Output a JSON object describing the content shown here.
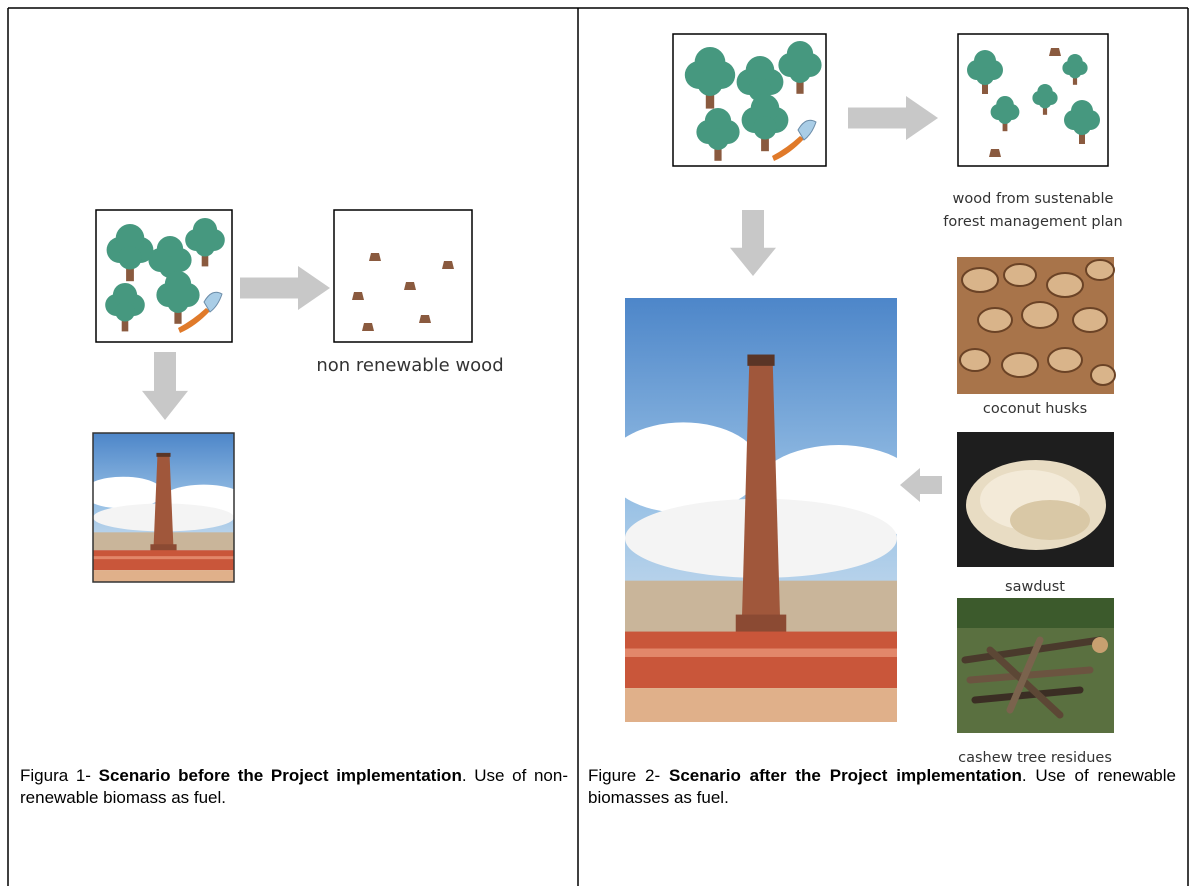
{
  "figures": [
    {
      "diagram": {
        "wood_label": "non renewable wood"
      },
      "caption": {
        "prefix": "Figura 1-",
        "title": "Scenario before the Project implementation",
        "text": ". Use of non-renewable biomass as fuel."
      }
    },
    {
      "diagram": {
        "wood_label": [
          "wood from sustenable",
          "forest management plan"
        ],
        "biomass_labels": [
          "coconut husks",
          "sawdust",
          "cashew tree residues"
        ]
      },
      "caption": {
        "prefix": "Figure 2-",
        "title": "Scenario after the Project implementation",
        "text": ". Use of renewable biomasses as fuel."
      }
    }
  ]
}
